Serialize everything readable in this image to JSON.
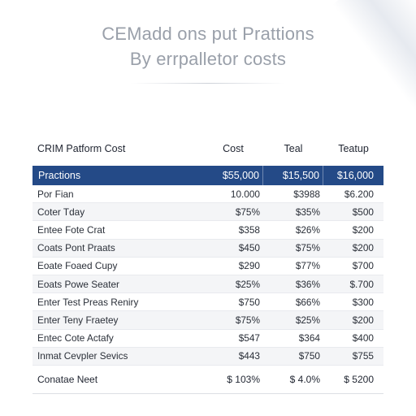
{
  "title": {
    "line1": "CEMadd ons put Prattions",
    "line2": "By errpalletor costs"
  },
  "table": {
    "headers": [
      "CRIM Patform Cost",
      "Cost",
      "Teal",
      "Teatup"
    ],
    "highlight_row": [
      "Practions",
      "$55,000",
      "$15,500",
      "$16,000"
    ],
    "rows": [
      [
        "Por Fian",
        "10.000",
        "$3988",
        "$6.200"
      ],
      [
        "Coter Tday",
        "$75%",
        "$35%",
        "$500"
      ],
      [
        "Entee Fote Crat",
        "$358",
        "$26%",
        "$200"
      ],
      [
        "Coats Pont Praats",
        "$450",
        "$75%",
        "$200"
      ],
      [
        "Eoate Foaed Cupy",
        "$290",
        "$77%",
        "$700"
      ],
      [
        "Eoats Powe Seater",
        "$25%",
        "$36%",
        "$.700"
      ],
      [
        "Enter Test Preas Reniry",
        "$750",
        "$66%",
        "$300"
      ],
      [
        "Enter Teny Fraetey",
        "$75%",
        "$25%",
        "$200"
      ],
      [
        "Entec Cote Actafy",
        "$547",
        "$364",
        "$400"
      ],
      [
        "Inmat Cevpler Sevics",
        "$443",
        "$750",
        "$755"
      ]
    ],
    "total_row": [
      "Conatae Neet",
      "$ 103%",
      "$ 4.0%",
      "$ 5200"
    ]
  },
  "colors": {
    "header_band": "#244a87",
    "title_text": "#9aa0aa",
    "row_stripe": "#f4f5f7"
  }
}
